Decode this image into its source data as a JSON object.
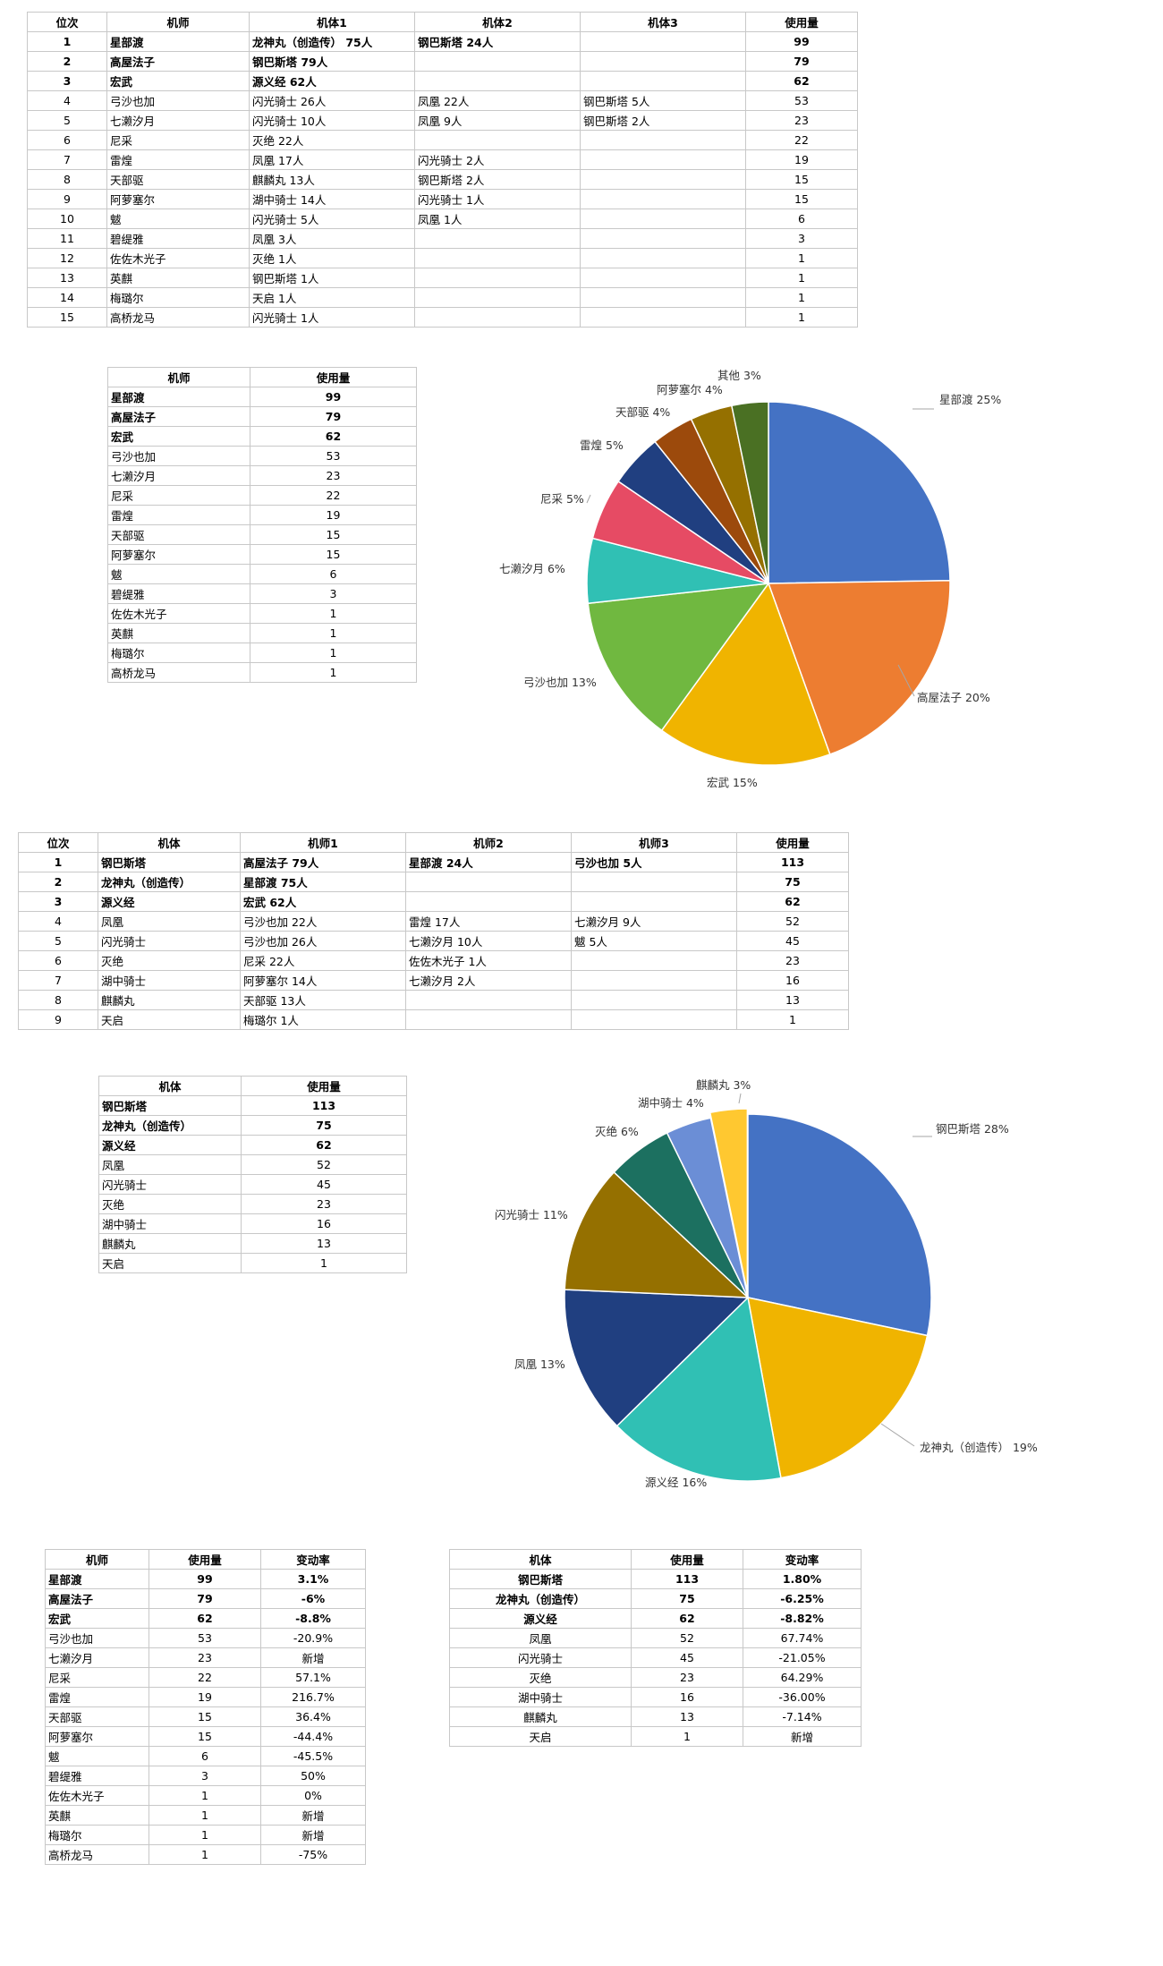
{
  "table1": {
    "headers": [
      "位次",
      "机师",
      "机体1",
      "机体2",
      "机体3",
      "使用量"
    ],
    "rows": [
      {
        "rank": "1",
        "name": "星部渡",
        "u1": "龙神丸（创造传） 75人",
        "u2": "钢巴斯塔 24人",
        "u3": "",
        "count": "99",
        "bold": true
      },
      {
        "rank": "2",
        "name": "高屋法子",
        "u1": "钢巴斯塔 79人",
        "u2": "",
        "u3": "",
        "count": "79",
        "bold": true
      },
      {
        "rank": "3",
        "name": "宏武",
        "u1": "源义经 62人",
        "u2": "",
        "u3": "",
        "count": "62",
        "bold": true
      },
      {
        "rank": "4",
        "name": "弓沙也加",
        "u1": "闪光骑士 26人",
        "u2": "凤凰 22人",
        "u3": "钢巴斯塔 5人",
        "count": "53",
        "bold": false
      },
      {
        "rank": "5",
        "name": "七濑汐月",
        "u1": "闪光骑士 10人",
        "u2": "凤凰 9人",
        "u3": "钢巴斯塔 2人",
        "count": "23",
        "bold": false
      },
      {
        "rank": "6",
        "name": "尼采",
        "u1": "灭绝 22人",
        "u2": "",
        "u3": "",
        "count": "22",
        "bold": false
      },
      {
        "rank": "7",
        "name": "雷煌",
        "u1": "凤凰 17人",
        "u2": "闪光骑士 2人",
        "u3": "",
        "count": "19",
        "bold": false
      },
      {
        "rank": "8",
        "name": "天部驱",
        "u1": "麒麟丸 13人",
        "u2": "钢巴斯塔 2人",
        "u3": "",
        "count": "15",
        "bold": false
      },
      {
        "rank": "9",
        "name": "阿萝塞尔",
        "u1": "湖中骑士 14人",
        "u2": "闪光骑士 1人",
        "u3": "",
        "count": "15",
        "bold": false
      },
      {
        "rank": "10",
        "name": "魃",
        "u1": "闪光骑士 5人",
        "u2": "凤凰 1人",
        "u3": "",
        "count": "6",
        "bold": false
      },
      {
        "rank": "11",
        "name": "碧缇雅",
        "u1": "凤凰 3人",
        "u2": "",
        "u3": "",
        "count": "3",
        "bold": false
      },
      {
        "rank": "12",
        "name": "佐佐木光子",
        "u1": "灭绝 1人",
        "u2": "",
        "u3": "",
        "count": "1",
        "bold": false
      },
      {
        "rank": "13",
        "name": "英麒",
        "u1": "钢巴斯塔 1人",
        "u2": "",
        "u3": "",
        "count": "1",
        "bold": false
      },
      {
        "rank": "14",
        "name": "梅璐尔",
        "u1": "天启 1人",
        "u2": "",
        "u3": "",
        "count": "1",
        "bold": false
      },
      {
        "rank": "15",
        "name": "高桥龙马",
        "u1": "闪光骑士 1人",
        "u2": "",
        "u3": "",
        "count": "1",
        "bold": false
      }
    ]
  },
  "table2": {
    "headers": [
      "机师",
      "使用量"
    ],
    "rows": [
      {
        "name": "星部渡",
        "count": "99",
        "bold": true
      },
      {
        "name": "高屋法子",
        "count": "79",
        "bold": true
      },
      {
        "name": "宏武",
        "count": "62",
        "bold": true
      },
      {
        "name": "弓沙也加",
        "count": "53",
        "bold": false
      },
      {
        "name": "七濑汐月",
        "count": "23",
        "bold": false
      },
      {
        "name": "尼采",
        "count": "22",
        "bold": false
      },
      {
        "name": "雷煌",
        "count": "19",
        "bold": false
      },
      {
        "name": "天部驱",
        "count": "15",
        "bold": false
      },
      {
        "name": "阿萝塞尔",
        "count": "15",
        "bold": false
      },
      {
        "name": "魃",
        "count": "6",
        "bold": false
      },
      {
        "name": "碧缇雅",
        "count": "3",
        "bold": false
      },
      {
        "name": "佐佐木光子",
        "count": "1",
        "bold": false
      },
      {
        "name": "英麒",
        "count": "1",
        "bold": false
      },
      {
        "name": "梅璐尔",
        "count": "1",
        "bold": false
      },
      {
        "name": "高桥龙马",
        "count": "1",
        "bold": false
      }
    ]
  },
  "table3": {
    "headers": [
      "位次",
      "机体",
      "机师1",
      "机师2",
      "机师3",
      "使用量"
    ],
    "rows": [
      {
        "rank": "1",
        "name": "钢巴斯塔",
        "p1": "高屋法子 79人",
        "p2": "星部渡 24人",
        "p3": "弓沙也加 5人",
        "count": "113",
        "bold": true
      },
      {
        "rank": "2",
        "name": "龙神丸（创造传）",
        "p1": "星部渡 75人",
        "p2": "",
        "p3": "",
        "count": "75",
        "bold": true
      },
      {
        "rank": "3",
        "name": "源义经",
        "p1": "宏武 62人",
        "p2": "",
        "p3": "",
        "count": "62",
        "bold": true
      },
      {
        "rank": "4",
        "name": "凤凰",
        "p1": "弓沙也加 22人",
        "p2": "雷煌 17人",
        "p3": "七濑汐月 9人",
        "count": "52",
        "bold": false
      },
      {
        "rank": "5",
        "name": "闪光骑士",
        "p1": "弓沙也加 26人",
        "p2": "七濑汐月 10人",
        "p3": "魃 5人",
        "count": "45",
        "bold": false
      },
      {
        "rank": "6",
        "name": "灭绝",
        "p1": "尼采 22人",
        "p2": "佐佐木光子 1人",
        "p3": "",
        "count": "23",
        "bold": false
      },
      {
        "rank": "7",
        "name": "湖中骑士",
        "p1": "阿萝塞尔 14人",
        "p2": "七濑汐月 2人",
        "p3": "",
        "count": "16",
        "bold": false
      },
      {
        "rank": "8",
        "name": "麒麟丸",
        "p1": "天部驱 13人",
        "p2": "",
        "p3": "",
        "count": "13",
        "bold": false
      },
      {
        "rank": "9",
        "name": "天启",
        "p1": "梅璐尔 1人",
        "p2": "",
        "p3": "",
        "count": "1",
        "bold": false
      }
    ]
  },
  "table4": {
    "headers": [
      "机体",
      "使用量"
    ],
    "rows": [
      {
        "name": "钢巴斯塔",
        "count": "113",
        "bold": true
      },
      {
        "name": "龙神丸（创造传）",
        "count": "75",
        "bold": true
      },
      {
        "name": "源义经",
        "count": "62",
        "bold": true
      },
      {
        "name": "凤凰",
        "count": "52",
        "bold": false
      },
      {
        "name": "闪光骑士",
        "count": "45",
        "bold": false
      },
      {
        "name": "灭绝",
        "count": "23",
        "bold": false
      },
      {
        "name": "湖中骑士",
        "count": "16",
        "bold": false
      },
      {
        "name": "麒麟丸",
        "count": "13",
        "bold": false
      },
      {
        "name": "天启",
        "count": "1",
        "bold": false
      }
    ]
  },
  "table5": {
    "headers": [
      "机师",
      "使用量",
      "变动率"
    ],
    "rows": [
      {
        "name": "星部渡",
        "count": "99",
        "rate": "3.1%",
        "bold": true
      },
      {
        "name": "高屋法子",
        "count": "79",
        "rate": "-6%",
        "bold": true
      },
      {
        "name": "宏武",
        "count": "62",
        "rate": "-8.8%",
        "bold": true
      },
      {
        "name": "弓沙也加",
        "count": "53",
        "rate": "-20.9%",
        "bold": false
      },
      {
        "name": "七濑汐月",
        "count": "23",
        "rate": "新增",
        "bold": false
      },
      {
        "name": "尼采",
        "count": "22",
        "rate": "57.1%",
        "bold": false
      },
      {
        "name": "雷煌",
        "count": "19",
        "rate": "216.7%",
        "bold": false
      },
      {
        "name": "天部驱",
        "count": "15",
        "rate": "36.4%",
        "bold": false
      },
      {
        "name": "阿萝塞尔",
        "count": "15",
        "rate": "-44.4%",
        "bold": false
      },
      {
        "name": "魃",
        "count": "6",
        "rate": "-45.5%",
        "bold": false
      },
      {
        "name": "碧缇雅",
        "count": "3",
        "rate": "50%",
        "bold": false
      },
      {
        "name": "佐佐木光子",
        "count": "1",
        "rate": "0%",
        "bold": false
      },
      {
        "name": "英麒",
        "count": "1",
        "rate": "新增",
        "bold": false
      },
      {
        "name": "梅璐尔",
        "count": "1",
        "rate": "新增",
        "bold": false
      },
      {
        "name": "高桥龙马",
        "count": "1",
        "rate": "-75%",
        "bold": false
      }
    ]
  },
  "table6": {
    "headers": [
      "机体",
      "使用量",
      "变动率"
    ],
    "rows": [
      {
        "name": "钢巴斯塔",
        "count": "113",
        "rate": "1.80%",
        "bold": true
      },
      {
        "name": "龙神丸（创造传）",
        "count": "75",
        "rate": "-6.25%",
        "bold": true
      },
      {
        "name": "源义经",
        "count": "62",
        "rate": "-8.82%",
        "bold": true
      },
      {
        "name": "凤凰",
        "count": "52",
        "rate": "67.74%",
        "bold": false
      },
      {
        "name": "闪光骑士",
        "count": "45",
        "rate": "-21.05%",
        "bold": false
      },
      {
        "name": "灭绝",
        "count": "23",
        "rate": "64.29%",
        "bold": false
      },
      {
        "name": "湖中骑士",
        "count": "16",
        "rate": "-36.00%",
        "bold": false
      },
      {
        "name": "麒麟丸",
        "count": "13",
        "rate": "-7.14%",
        "bold": false
      },
      {
        "name": "天启",
        "count": "1",
        "rate": "新增",
        "bold": false
      }
    ]
  },
  "chart_data": [
    {
      "type": "pie",
      "categories": [
        "星部渡",
        "高屋法子",
        "宏武",
        "弓沙也加",
        "七濑汐月",
        "尼采",
        "雷煌",
        "天部驱",
        "阿萝塞尔",
        "其他"
      ],
      "values": [
        99,
        79,
        62,
        53,
        23,
        22,
        19,
        15,
        15,
        13
      ],
      "labels": [
        "星部渡 25%",
        "高屋法子 20%",
        "宏武 15%",
        "弓沙也加 13%",
        "七濑汐月 6%",
        "尼采 5%",
        "雷煌 5%",
        "天部驱 4%",
        "阿萝塞尔 4%",
        "其他 3%"
      ],
      "colors": [
        "#4472c4",
        "#ed7d31",
        "#f0b400",
        "#70b840",
        "#30c0b4",
        "#e64b64",
        "#203f80",
        "#9c4a0c",
        "#957000",
        "#4a7023"
      ]
    },
    {
      "type": "pie",
      "categories": [
        "钢巴斯塔",
        "龙神丸（创造传）",
        "源义经",
        "凤凰",
        "闪光骑士",
        "灭绝",
        "湖中骑士",
        "麒麟丸"
      ],
      "values": [
        113,
        75,
        62,
        52,
        45,
        23,
        16,
        13
      ],
      "labels": [
        "钢巴斯塔 28%",
        "龙神丸（创造传） 19%",
        "源义经 16%",
        "凤凰 13%",
        "闪光骑士 11%",
        "灭绝 6%",
        "湖中骑士 4%",
        "麒麟丸 3%"
      ],
      "colors": [
        "#4472c4",
        "#f0b400",
        "#30c0b4",
        "#203f80",
        "#957000",
        "#1c7060",
        "#6b8ed6",
        "#ffc830"
      ]
    }
  ]
}
